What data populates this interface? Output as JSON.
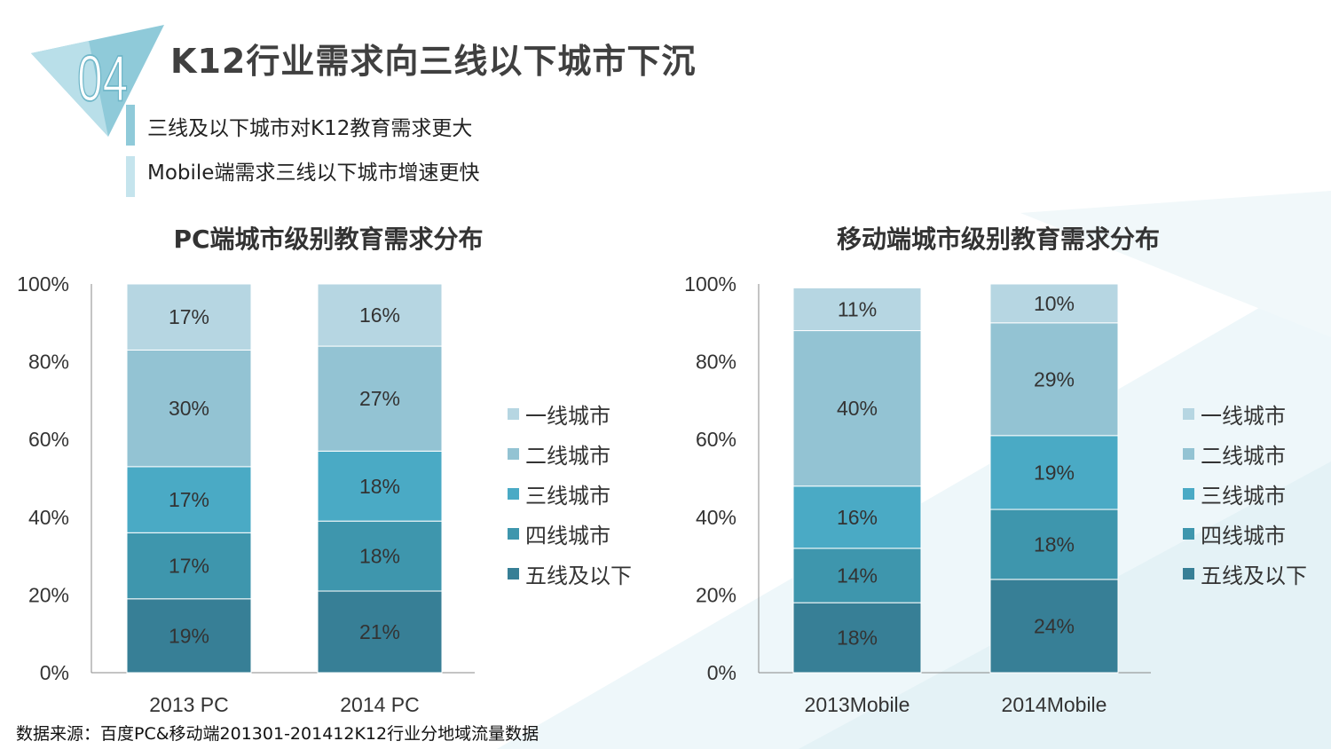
{
  "header": {
    "badge_number": "04",
    "title": "K12行业需求向三线以下城市下沉",
    "bullets": [
      "三线及以下城市对K12教育需求更大",
      "Mobile端需求三线以下城市增速更快"
    ]
  },
  "source_note": "数据来源：百度PC&移动端201301-201412K12行业分地域流量数据",
  "colors": {
    "tier1": "#b6d6e2",
    "tier2": "#93c3d3",
    "tier3": "#4aaac5",
    "tier4": "#3e96ad",
    "tier5": "#377f96",
    "accent": "#8fcad9",
    "axis": "#888888"
  },
  "chart_data": [
    {
      "type": "bar",
      "stacked": true,
      "title": "PC端城市级别教育需求分布",
      "categories": [
        "2013 PC",
        "2014 PC"
      ],
      "series": [
        {
          "name": "五线及以下",
          "values": [
            19,
            21
          ]
        },
        {
          "name": "四线城市",
          "values": [
            17,
            18
          ]
        },
        {
          "name": "三线城市",
          "values": [
            17,
            18
          ]
        },
        {
          "name": "二线城市",
          "values": [
            30,
            27
          ]
        },
        {
          "name": "一线城市",
          "values": [
            17,
            16
          ]
        }
      ],
      "yticks": [
        "0%",
        "20%",
        "40%",
        "60%",
        "80%",
        "100%"
      ],
      "ylim": [
        0,
        100
      ],
      "legend": [
        "一线城市",
        "二线城市",
        "三线城市",
        "四线城市",
        "五线及以下"
      ],
      "legend_position": "right"
    },
    {
      "type": "bar",
      "stacked": true,
      "title": "移动端城市级别教育需求分布",
      "categories": [
        "2013Mobile",
        "2014Mobile"
      ],
      "series": [
        {
          "name": "五线及以下",
          "values": [
            18,
            24
          ]
        },
        {
          "name": "四线城市",
          "values": [
            14,
            18
          ]
        },
        {
          "name": "三线城市",
          "values": [
            16,
            19
          ]
        },
        {
          "name": "二线城市",
          "values": [
            40,
            29
          ]
        },
        {
          "name": "一线城市",
          "values": [
            11,
            10
          ]
        }
      ],
      "yticks": [
        "0%",
        "20%",
        "40%",
        "60%",
        "80%",
        "100%"
      ],
      "ylim": [
        0,
        100
      ],
      "legend": [
        "一线城市",
        "二线城市",
        "三线城市",
        "四线城市",
        "五线及以下"
      ],
      "legend_position": "right"
    }
  ]
}
